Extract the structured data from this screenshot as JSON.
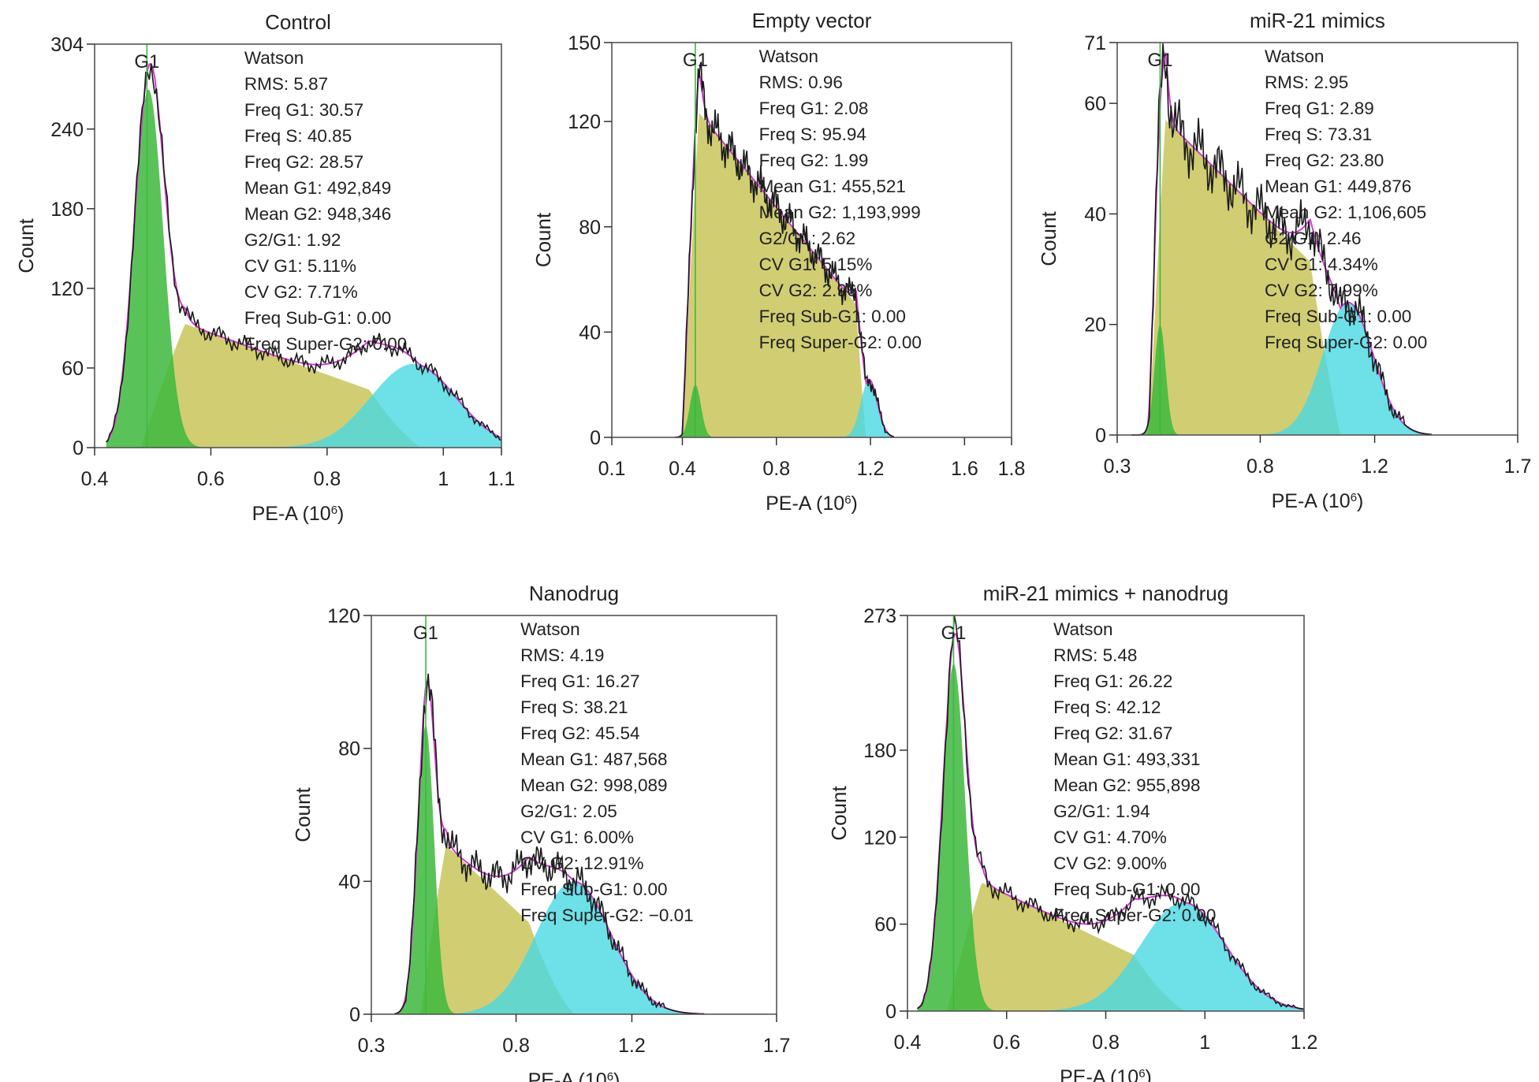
{
  "chart_data": [
    {
      "type": "area",
      "title": "Control",
      "xlabel": "PE-A (10⁶)",
      "ylabel": "Count",
      "xlim": [
        0.4,
        1.1
      ],
      "ylim": [
        0,
        304
      ],
      "xticks": [
        0.4,
        0.6,
        0.8,
        1,
        1.1
      ],
      "xtick_labels": [
        "0.4",
        "0.6",
        "0.8",
        "1",
        "1.1"
      ],
      "yticks": [
        0,
        60,
        120,
        180,
        240,
        304
      ],
      "g1_marker": {
        "label": "G1",
        "x": 0.49
      },
      "stats_lines": [
        "Watson",
        "RMS: 5.87",
        "Freq G1: 30.57",
        "Freq S: 40.85",
        "Freq G2: 28.57",
        "Mean G1: 492,849",
        "Mean G2: 948,346",
        "G2/G1: 1.92",
        "CV G1: 5.11%",
        "CV G2: 7.71%",
        "Freq Sub-G1: 0.00",
        "Freq Super-G2: 0.00"
      ],
      "model": {
        "g1_mean": 0.4928,
        "g1_sd": 0.0252,
        "g1_peak": 270,
        "g2_mean": 0.9483,
        "g2_sd": 0.073,
        "g2_peak": 63,
        "s_start": 0.48,
        "s_end": 0.96,
        "s_level_start": 105,
        "s_level_end": 30
      },
      "range": [
        0.42,
        1.1
      ]
    },
    {
      "type": "area",
      "title": "Empty vector",
      "xlabel": "PE-A (10⁶)",
      "ylabel": "Count",
      "xlim": [
        0.1,
        1.8
      ],
      "ylim": [
        0,
        150
      ],
      "xticks": [
        0.1,
        0.4,
        0.8,
        1.2,
        1.6,
        1.8
      ],
      "xtick_labels": [
        "0.1",
        "0.4",
        "0.8",
        "1.2",
        "1.6",
        "1.8"
      ],
      "yticks": [
        0,
        40,
        80,
        120,
        150
      ],
      "g1_marker": {
        "label": "G1",
        "x": 0.455
      },
      "stats_lines": [
        "Watson",
        "RMS: 0.96",
        "Freq G1: 2.08",
        "Freq S: 95.94",
        "Freq G2: 1.99",
        "Mean G1: 455,521",
        "Mean G2: 1,193,999",
        "G2/G1: 2.62",
        "CV G1: 5.15%",
        "CV G2: 2.96%",
        "Freq Sub-G1: 0.00",
        "Freq Super-G2: 0.00"
      ],
      "model": {
        "g1_mean": 0.4555,
        "g1_sd": 0.0235,
        "g1_peak": 20,
        "g2_mean": 1.194,
        "g2_sd": 0.035,
        "g2_peak": 22,
        "s_start": 0.4,
        "s_end": 1.18,
        "s_level_start": 131,
        "s_level_end": 46
      },
      "range": [
        0.37,
        1.3
      ]
    },
    {
      "type": "area",
      "title": "miR-21 mimics",
      "xlabel": "PE-A (10⁶)",
      "ylabel": "Count",
      "xlim": [
        0.3,
        1.7
      ],
      "ylim": [
        0,
        71
      ],
      "xticks": [
        0.3,
        0.8,
        1.2,
        1.7
      ],
      "xtick_labels": [
        "0.3",
        "0.8",
        "1.2",
        "1.7"
      ],
      "yticks": [
        0,
        20,
        40,
        60,
        71
      ],
      "g1_marker": {
        "label": "G1",
        "x": 0.45
      },
      "stats_lines": [
        "Watson",
        "RMS: 2.95",
        "Freq G1: 2.89",
        "Freq S: 73.31",
        "Freq G2: 23.80",
        "Mean G1: 449,876",
        "Mean G2: 1,106,605",
        "G2/G1: 2.46",
        "CV G1: 4.34%",
        "CV G2: 7.99%",
        "Freq Sub-G1: 0.00",
        "Freq Super-G2: 0.00"
      ],
      "model": {
        "g1_mean": 0.4499,
        "g1_sd": 0.0195,
        "g1_peak": 20,
        "g2_mean": 1.1066,
        "g2_sd": 0.088,
        "g2_peak": 24,
        "s_start": 0.41,
        "s_end": 1.08,
        "s_level_start": 60,
        "s_level_end": 26
      },
      "range": [
        0.35,
        1.4
      ]
    },
    {
      "type": "area",
      "title": "Nanodrug",
      "xlabel": "PE-A (10⁶)",
      "ylabel": "Count",
      "xlim": [
        0.3,
        1.7
      ],
      "ylim": [
        0,
        120
      ],
      "xticks": [
        0.3,
        0.8,
        1.2,
        1.7
      ],
      "xtick_labels": [
        "0.3",
        "0.8",
        "1.2",
        "1.7"
      ],
      "yticks": [
        0,
        40,
        80,
        120
      ],
      "g1_marker": {
        "label": "G1",
        "x": 0.488
      },
      "stats_lines": [
        "Watson",
        "RMS: 4.19",
        "Freq G1: 16.27",
        "Freq S: 38.21",
        "Freq G2: 45.54",
        "Mean G1: 487,568",
        "Mean G2: 998,089",
        "G2/G1: 2.05",
        "CV G1: 6.00%",
        "CV G2: 12.91%",
        "Freq Sub-G1: 0.00",
        "Freq Super-G2: −0.01"
      ],
      "model": {
        "g1_mean": 0.4876,
        "g1_sd": 0.0293,
        "g1_peak": 87,
        "g2_mean": 0.9981,
        "g2_sd": 0.129,
        "g2_peak": 40,
        "s_start": 0.47,
        "s_end": 1.0,
        "s_level_start": 58,
        "s_level_end": 15
      },
      "range": [
        0.38,
        1.45
      ]
    },
    {
      "type": "area",
      "title": "miR-21 mimics + nanodrug",
      "xlabel": "PE-A (10⁶)",
      "ylabel": "Count",
      "xlim": [
        0.4,
        1.2
      ],
      "ylim": [
        0,
        273
      ],
      "xticks": [
        0.4,
        0.6,
        0.8,
        1,
        1.2
      ],
      "xtick_labels": [
        "0.4",
        "0.6",
        "0.8",
        "1",
        "1.2"
      ],
      "yticks": [
        0,
        60,
        120,
        180,
        273
      ],
      "g1_marker": {
        "label": "G1",
        "x": 0.493
      },
      "stats_lines": [
        "Watson",
        "RMS: 5.48",
        "Freq G1: 26.22",
        "Freq S: 42.12",
        "Freq G2: 31.67",
        "Mean G1: 493,331",
        "Mean G2: 955,898",
        "G2/G1: 1.94",
        "CV G1: 4.70%",
        "CV G2: 9.00%",
        "Freq Sub-G1: 0.00",
        "Freq Super-G2: 0.00"
      ],
      "model": {
        "g1_mean": 0.4933,
        "g1_sd": 0.0232,
        "g1_peak": 240,
        "g2_mean": 0.9559,
        "g2_sd": 0.086,
        "g2_peak": 75,
        "s_start": 0.48,
        "s_end": 0.96,
        "s_level_start": 100,
        "s_level_end": 22
      },
      "range": [
        0.42,
        1.2
      ]
    }
  ],
  "colors": {
    "g1_fill": "#3cb93c",
    "s_fill": "#c9c45a",
    "g2_fill": "#48d8e2",
    "overlap_fill": "#4fc79a",
    "fit_line": "#d23bd3",
    "data_line": "#1a1a1a",
    "marker_line": "#3cb93c"
  }
}
